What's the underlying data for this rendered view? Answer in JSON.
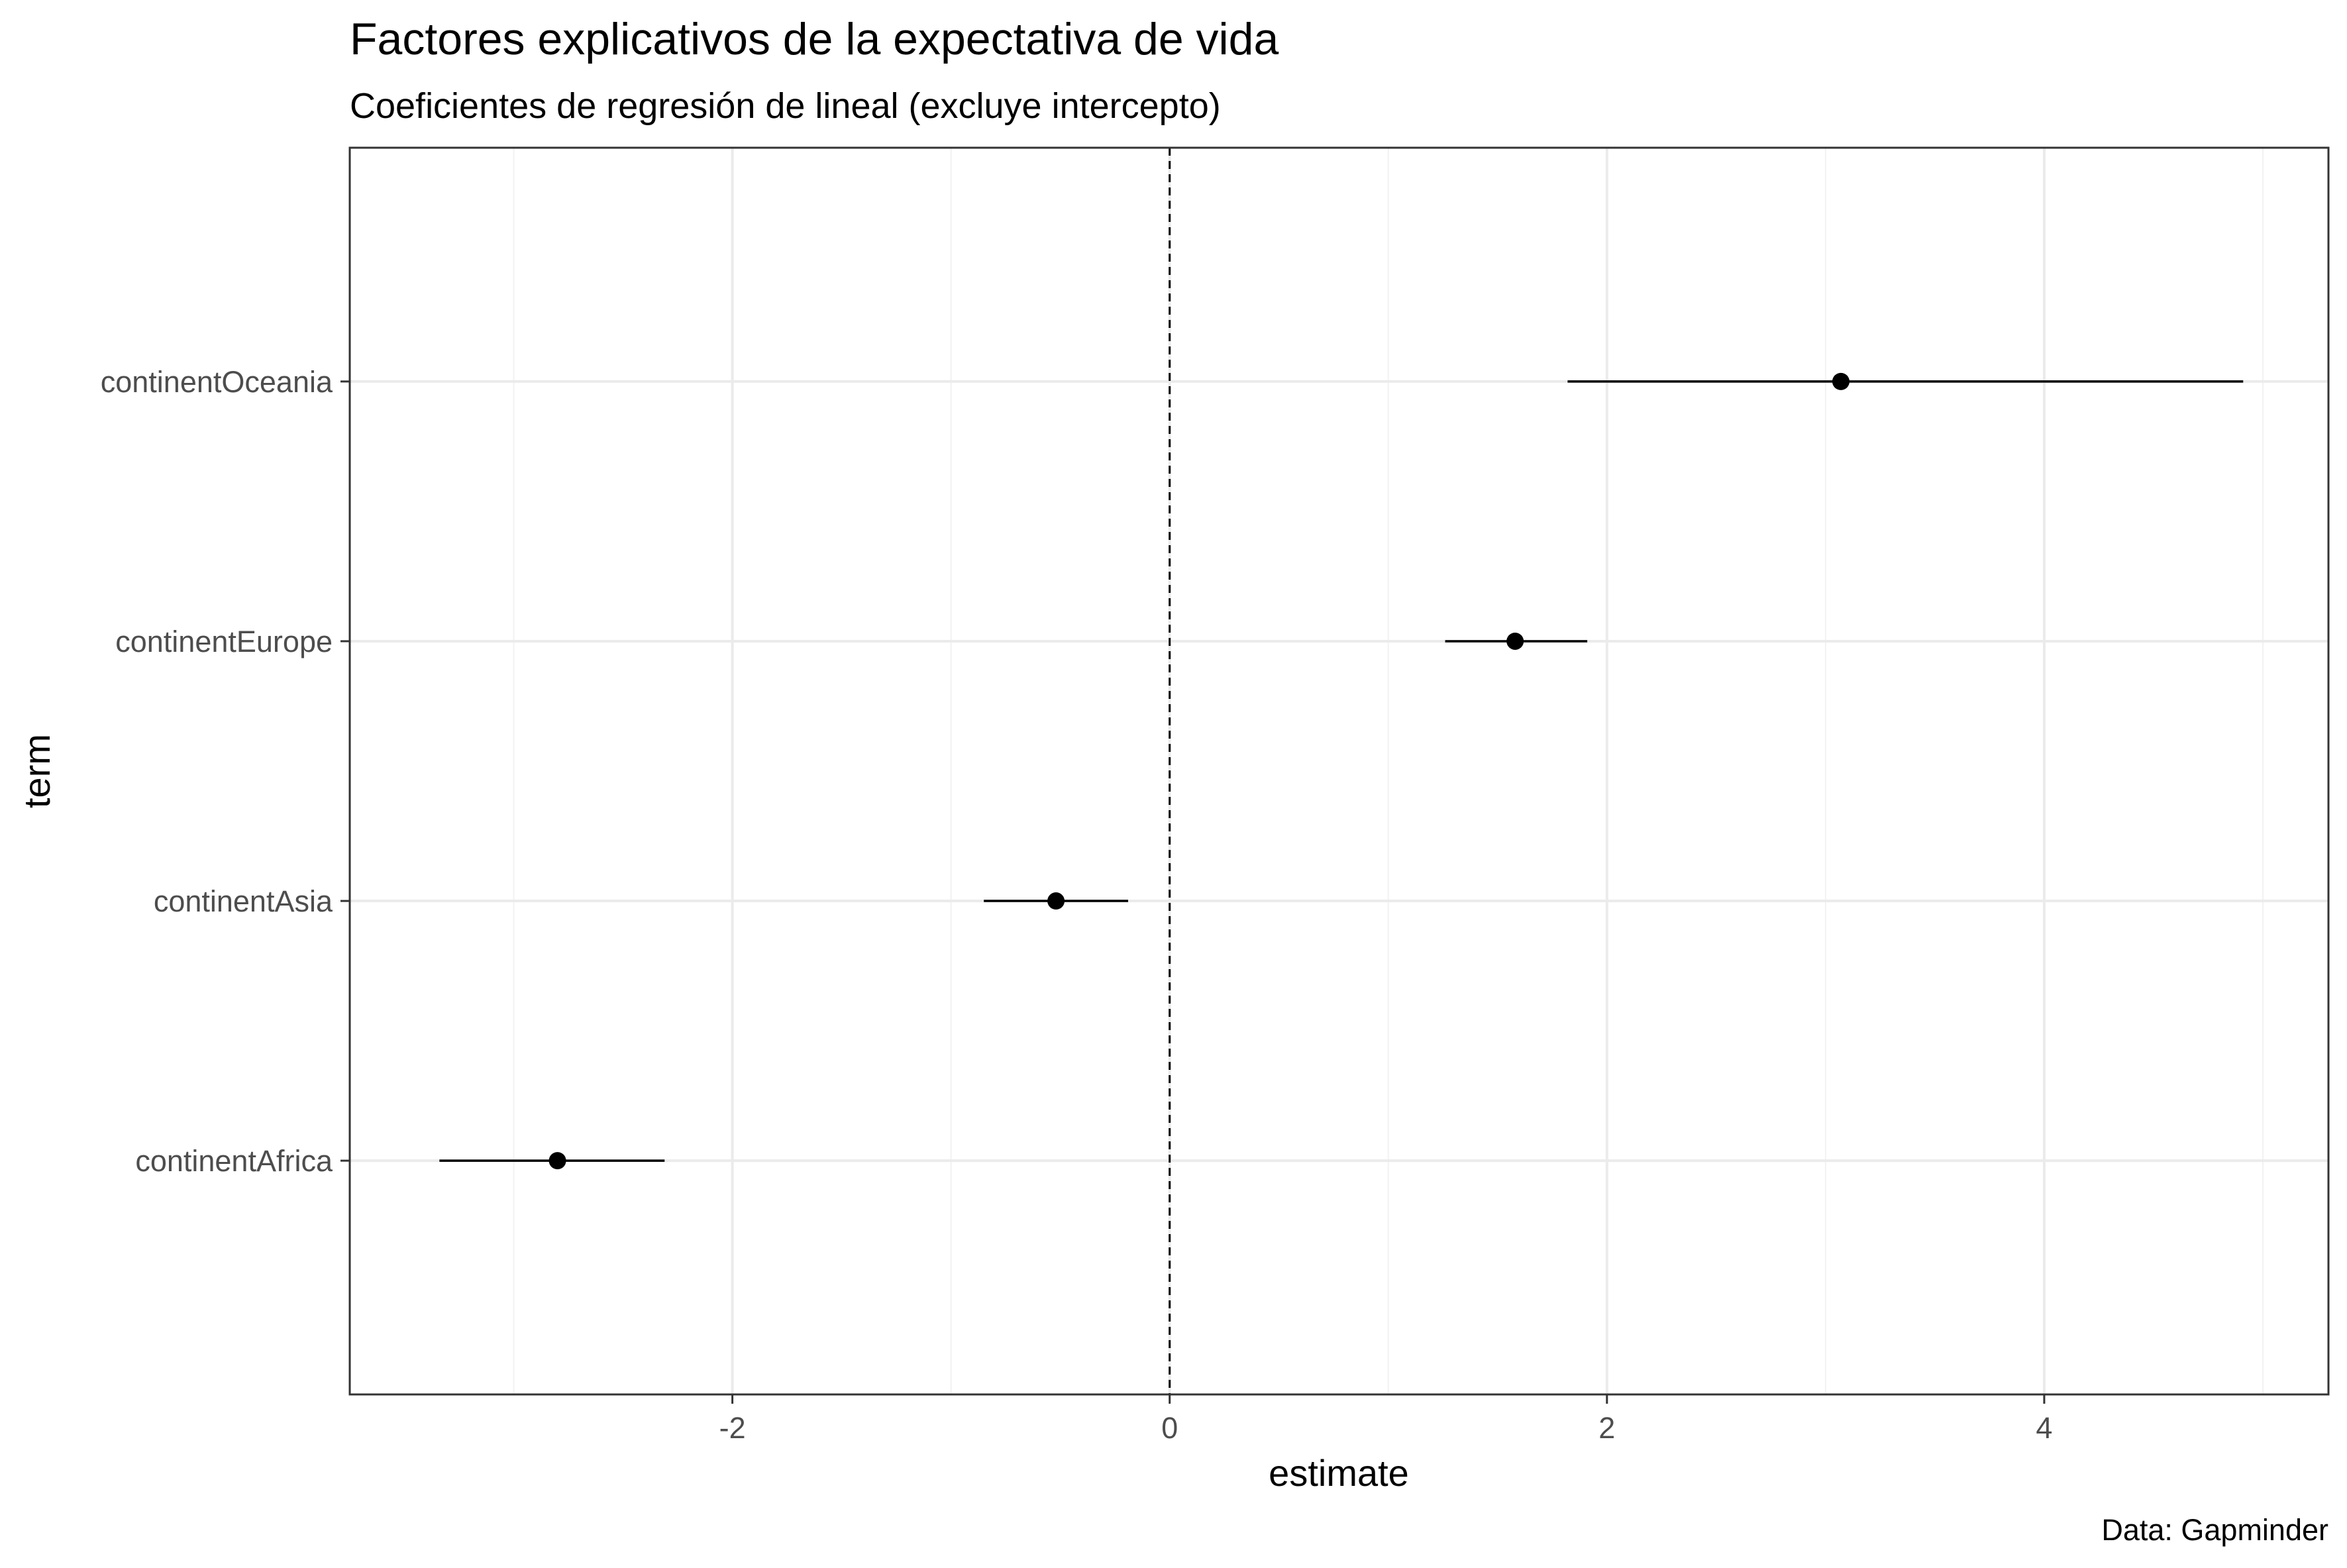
{
  "colors": {
    "background": "#ffffff",
    "panel_border": "#333333",
    "grid_major": "#ebebeb",
    "grid_minor": "#f2f2f2",
    "point": "#000000",
    "errorbar": "#000000",
    "reference_line": "#000000",
    "tick_label": "#4d4d4d"
  },
  "chart_data": {
    "type": "scatter",
    "subtype": "coefficient-plot",
    "title": "Factores explicativos de la expectativa de vida",
    "subtitle": "Coeficientes de regresión de lineal (excluye intercepto)",
    "xlabel": "estimate",
    "ylabel": "term",
    "caption": "Data: Gapminder",
    "xlim": [
      -3.75,
      5.3
    ],
    "x_ticks": [
      -2,
      0,
      2,
      4
    ],
    "x_tick_labels": [
      "-2",
      "0",
      "2",
      "4"
    ],
    "reference_line": {
      "x": 0,
      "style": "dashed"
    },
    "grid": true,
    "legend": "none",
    "categories": [
      "continentAfrica",
      "continentAsia",
      "continentEurope",
      "continentOceania"
    ],
    "points": [
      {
        "term": "continentAfrica",
        "estimate": -2.8,
        "conf_low": -3.34,
        "conf_high": -2.31
      },
      {
        "term": "continentAsia",
        "estimate": -0.52,
        "conf_low": -0.85,
        "conf_high": -0.19
      },
      {
        "term": "continentEurope",
        "estimate": 1.58,
        "conf_low": 1.26,
        "conf_high": 1.91
      },
      {
        "term": "continentOceania",
        "estimate": 3.07,
        "conf_low": 1.82,
        "conf_high": 4.91
      }
    ]
  }
}
